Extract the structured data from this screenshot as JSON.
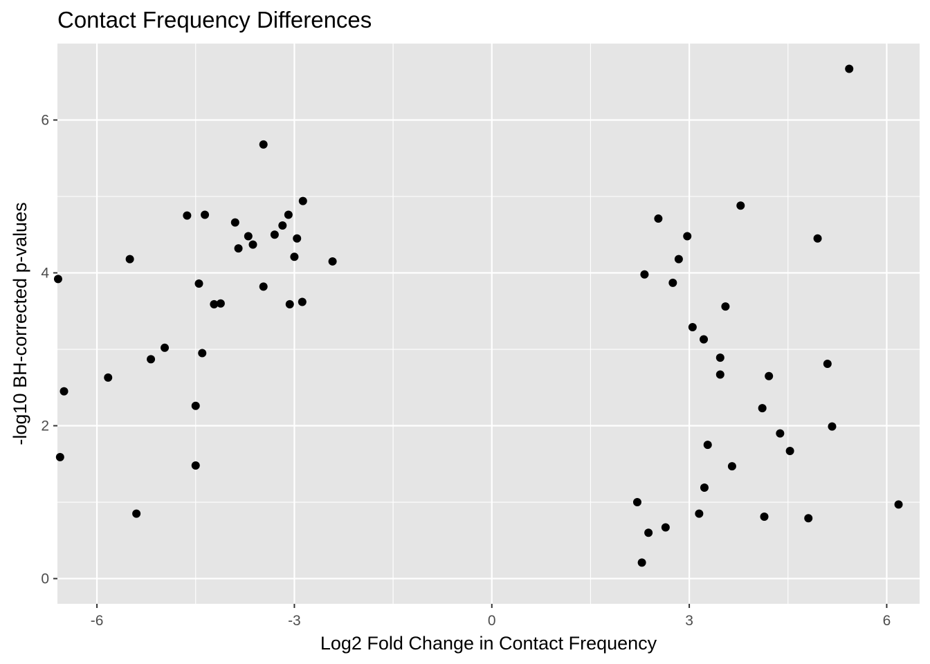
{
  "chart_data": {
    "type": "scatter",
    "title": "Contact Frequency Differences",
    "xlabel": "Log2 Fold Change in Contact Frequency",
    "ylabel": "-log10 BH-corrected p-values",
    "xlim": [
      -6.6,
      6.5
    ],
    "ylim": [
      -0.33,
      7.0
    ],
    "x_ticks": [
      -6,
      -3,
      0,
      3,
      6
    ],
    "y_ticks": [
      0,
      2,
      4,
      6
    ],
    "x_tick_labels": [
      "-6",
      "-3",
      "0",
      "3",
      "6"
    ],
    "y_tick_labels": [
      "0",
      "2",
      "4",
      "6"
    ],
    "grid": true,
    "legend": "none",
    "colors": {
      "panel": "#e5e5e5",
      "grid": "#ffffff",
      "point": "#000000",
      "tick_text": "#4d4d4d"
    },
    "series": [
      {
        "x": [
          5.43,
          -3.47,
          3.78,
          -2.87,
          -3.09,
          -4.63,
          -4.36,
          2.53,
          4.95,
          2.97,
          -3.3,
          -2.42,
          2.84,
          -5.5,
          -6.59,
          2.32,
          -3.47,
          -4.45,
          -3.07,
          -2.88,
          2.75,
          -4.22,
          -4.12,
          -5.83,
          -6.5,
          -5.18,
          -4.97,
          -5.4,
          -4.5,
          -6.56,
          -4.5,
          -4.4,
          -3.7,
          3.55,
          3.05,
          3.47,
          3.22,
          3.47,
          4.21,
          5.1,
          5.17,
          4.11,
          4.38,
          4.53,
          3.28,
          3.65,
          4.81,
          4.14,
          6.18,
          3.23,
          3.15,
          2.38,
          2.64,
          2.28,
          2.21,
          -3.0,
          -2.96,
          -3.18,
          -3.9,
          -3.85,
          -3.63
        ],
        "y": [
          6.67,
          5.68,
          4.88,
          4.94,
          4.76,
          4.75,
          4.76,
          4.71,
          4.45,
          4.48,
          4.5,
          4.15,
          4.18,
          4.18,
          3.92,
          3.98,
          3.82,
          3.86,
          3.59,
          3.62,
          3.87,
          3.59,
          3.6,
          2.63,
          2.45,
          2.87,
          3.02,
          0.85,
          1.48,
          1.59,
          2.26,
          2.95,
          4.48,
          3.56,
          3.29,
          2.89,
          3.13,
          2.67,
          2.65,
          2.81,
          1.99,
          2.23,
          1.9,
          1.67,
          1.75,
          1.47,
          0.79,
          0.81,
          0.97,
          1.19,
          0.85,
          0.6,
          0.67,
          0.21,
          1.0,
          4.21,
          4.45,
          4.62,
          4.66,
          4.32,
          4.37
        ]
      }
    ]
  }
}
